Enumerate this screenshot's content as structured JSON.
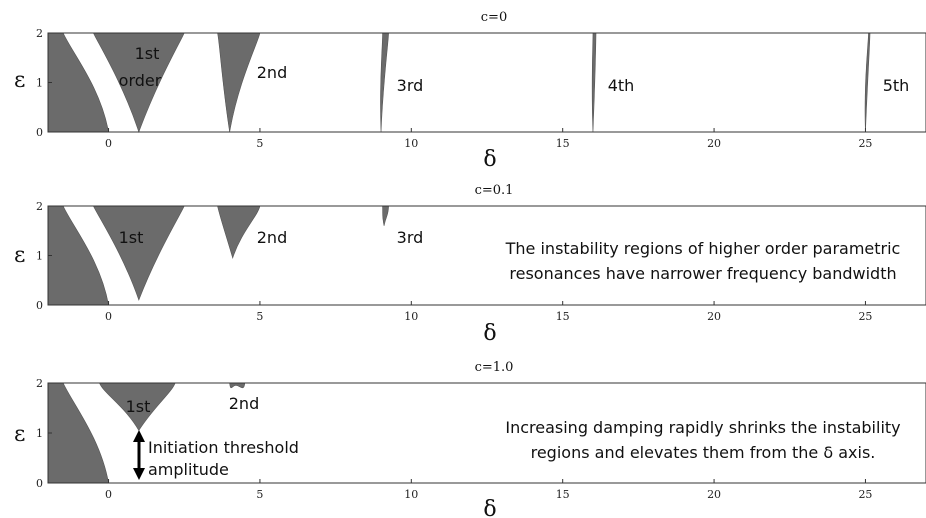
{
  "chart_data": [
    {
      "type": "area",
      "title": "c=0",
      "xlabel": "δ",
      "ylabel": "ε",
      "xlim": [
        -2,
        27
      ],
      "ylim": [
        0,
        2
      ],
      "xticks": [
        0,
        5,
        10,
        15,
        20,
        25
      ],
      "yticks": [
        0,
        1,
        2
      ],
      "regions": [
        {
          "label": "",
          "base": [
            -2,
            0
          ],
          "tip": [
            0,
            0
          ],
          "top": [
            -2.0,
            -1.5
          ]
        },
        {
          "label": "1st order",
          "base": [
            1.0,
            1.0
          ],
          "tip": [
            1.0,
            0.0
          ],
          "top": [
            -0.5,
            2.5
          ]
        },
        {
          "label": "2nd",
          "base": [
            4.0,
            4.0
          ],
          "tip": [
            4.0,
            0.0
          ],
          "top": [
            3.6,
            5.0
          ]
        },
        {
          "label": "3rd",
          "base": [
            9.0,
            9.0
          ],
          "tip": [
            9.0,
            0.0
          ],
          "top": [
            9.05,
            9.25
          ]
        },
        {
          "label": "4th",
          "base": [
            16.0,
            16.0
          ],
          "tip": [
            16.0,
            0.0
          ],
          "top": [
            16.0,
            16.1
          ]
        },
        {
          "label": "5th",
          "base": [
            25.0,
            25.0
          ],
          "tip": [
            25.0,
            0.0
          ],
          "top": [
            25.1,
            25.15
          ]
        }
      ]
    },
    {
      "type": "area",
      "title": "c=0.1",
      "xlabel": "δ",
      "ylabel": "ε",
      "xlim": [
        -2,
        27
      ],
      "ylim": [
        0,
        2
      ],
      "xticks": [
        0,
        5,
        10,
        15,
        20,
        25
      ],
      "yticks": [
        0,
        1,
        2
      ],
      "annotation": "The instability regions of higher order parametric resonances have narrower frequency bandwidth",
      "regions": [
        {
          "label": "",
          "base": [
            -2,
            0
          ],
          "tip": [
            0,
            0
          ],
          "top": [
            -2.0,
            -1.5
          ]
        },
        {
          "label": "1st",
          "base": [
            1.0,
            1.0
          ],
          "tip": [
            1.0,
            0.1
          ],
          "top": [
            -0.5,
            2.5
          ]
        },
        {
          "label": "2nd",
          "base": [
            4.1,
            4.1
          ],
          "tip": [
            4.1,
            0.95
          ],
          "top": [
            3.6,
            5.0
          ]
        },
        {
          "label": "3rd",
          "base": [
            9.1,
            9.1
          ],
          "tip": [
            9.1,
            1.6
          ],
          "top": [
            9.05,
            9.25
          ]
        }
      ]
    },
    {
      "type": "area",
      "title": "c=1.0",
      "xlabel": "δ",
      "ylabel": "ε",
      "xlim": [
        -2,
        27
      ],
      "ylim": [
        0,
        2
      ],
      "xticks": [
        0,
        5,
        10,
        15,
        20,
        25
      ],
      "yticks": [
        0,
        1,
        2
      ],
      "annotation": "Increasing damping rapidly shrinks the instability regions and elevates them from the δ axis.",
      "threshold_label": "Initiation threshold amplitude",
      "regions": [
        {
          "label": "",
          "base": [
            -2,
            0
          ],
          "tip": [
            0,
            0
          ],
          "top": [
            -2.0,
            -1.5
          ]
        },
        {
          "label": "1st",
          "base": [
            1.0,
            1.0
          ],
          "tip": [
            1.0,
            1.05
          ],
          "top": [
            -0.3,
            2.2
          ]
        },
        {
          "label": "2nd",
          "base": [
            4.2,
            4.2
          ],
          "tip": [
            4.2,
            1.95
          ],
          "top": [
            4.0,
            4.5
          ]
        }
      ]
    }
  ],
  "panels_text": {
    "p0": {
      "title": "c=0",
      "ylabel": "ε",
      "xlabel": "δ",
      "labels": [
        "1st",
        "order",
        "2nd",
        "3rd",
        "4th",
        "5th"
      ]
    },
    "p1": {
      "title": "c=0.1",
      "ylabel": "ε",
      "xlabel": "δ",
      "labels": [
        "1st",
        "2nd",
        "3rd"
      ],
      "note_line1": "The instability regions of higher order parametric",
      "note_line2": "resonances have narrower frequency bandwidth"
    },
    "p2": {
      "title": "c=1.0",
      "ylabel": "ε",
      "xlabel": "δ",
      "labels": [
        "1st",
        "2nd"
      ],
      "threshold_line1": "Initiation threshold",
      "threshold_line2": "amplitude",
      "note_line1": "Increasing damping rapidly shrinks the instability",
      "note_line2": "regions and elevates them from the δ axis."
    }
  },
  "colors": {
    "region_fill": "#6b6b6b",
    "frame": "#333333",
    "arrow": "#000000"
  }
}
